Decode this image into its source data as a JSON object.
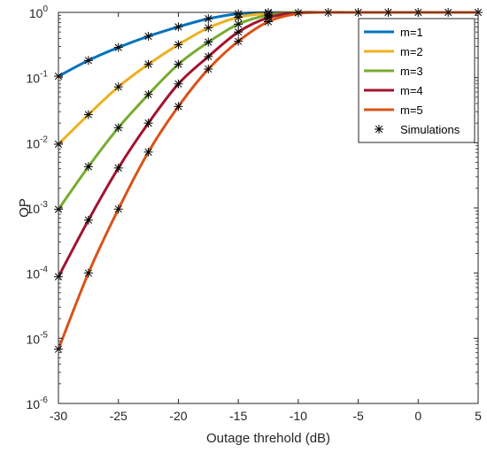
{
  "chart_data": {
    "type": "line",
    "xlabel": "Outage threhold (dB)",
    "ylabel": "OP",
    "xlim": [
      -30,
      5
    ],
    "ylim": [
      1e-06,
      1
    ],
    "yscale": "log",
    "grid": false,
    "legend_position": "top-right",
    "x_ticks": [
      {
        "value": -30,
        "label": "-30"
      },
      {
        "value": -25,
        "label": "-25"
      },
      {
        "value": -20,
        "label": "-20"
      },
      {
        "value": -15,
        "label": "-15"
      },
      {
        "value": -10,
        "label": "-10"
      },
      {
        "value": -5,
        "label": "-5"
      },
      {
        "value": 0,
        "label": "0"
      },
      {
        "value": 5,
        "label": "5"
      }
    ],
    "y_ticks": [
      {
        "value": 1,
        "base": "10",
        "exp": "0"
      },
      {
        "value": 0.1,
        "base": "10",
        "exp": "-1"
      },
      {
        "value": 0.01,
        "base": "10",
        "exp": "-2"
      },
      {
        "value": 0.001,
        "base": "10",
        "exp": "-3"
      },
      {
        "value": 0.0001,
        "base": "10",
        "exp": "-4"
      },
      {
        "value": 1e-05,
        "base": "10",
        "exp": "-5"
      },
      {
        "value": 1e-06,
        "base": "10",
        "exp": "-6"
      }
    ],
    "x": [
      -30,
      -27.5,
      -25,
      -22.5,
      -20,
      -17.5,
      -15,
      -12.5,
      -10,
      -7.5,
      -5,
      -2.5,
      0,
      2.5,
      5
    ],
    "series": [
      {
        "name": "m=1",
        "color": "#0072BD",
        "values": [
          0.105,
          0.183,
          0.29,
          0.43,
          0.6,
          0.8,
          0.95,
          0.995,
          1,
          1,
          1,
          1,
          1,
          1,
          1
        ]
      },
      {
        "name": "m=2",
        "color": "#EDB120",
        "values": [
          0.0095,
          0.027,
          0.072,
          0.16,
          0.32,
          0.58,
          0.84,
          0.97,
          1,
          1,
          1,
          1,
          1,
          1,
          1
        ]
      },
      {
        "name": "m=3",
        "color": "#77AC30",
        "values": [
          0.00095,
          0.0043,
          0.017,
          0.055,
          0.16,
          0.35,
          0.66,
          0.91,
          0.995,
          1,
          1,
          1,
          1,
          1,
          1
        ]
      },
      {
        "name": "m=4",
        "color": "#A2142F",
        "values": [
          8.8e-05,
          0.00065,
          0.0041,
          0.02,
          0.08,
          0.21,
          0.5,
          0.83,
          0.98,
          1,
          1,
          1,
          1,
          1,
          1
        ]
      },
      {
        "name": "m=5",
        "color": "#D95319",
        "values": [
          6.8e-06,
          0.0001,
          0.00096,
          0.0072,
          0.036,
          0.135,
          0.36,
          0.72,
          0.96,
          1,
          1,
          1,
          1,
          1,
          1
        ]
      }
    ],
    "simulations": {
      "name": "Simulations",
      "marker": "*",
      "color": "#000000",
      "points": [
        {
          "x": -30,
          "y": 0.105
        },
        {
          "x": -27.5,
          "y": 0.183
        },
        {
          "x": -25,
          "y": 0.29
        },
        {
          "x": -22.5,
          "y": 0.43
        },
        {
          "x": -20,
          "y": 0.6
        },
        {
          "x": -17.5,
          "y": 0.8
        },
        {
          "x": -15,
          "y": 0.95
        },
        {
          "x": -12.5,
          "y": 0.995
        },
        {
          "x": -30,
          "y": 0.0095
        },
        {
          "x": -27.5,
          "y": 0.027
        },
        {
          "x": -25,
          "y": 0.072
        },
        {
          "x": -22.5,
          "y": 0.16
        },
        {
          "x": -20,
          "y": 0.32
        },
        {
          "x": -17.5,
          "y": 0.58
        },
        {
          "x": -15,
          "y": 0.84
        },
        {
          "x": -12.5,
          "y": 0.97
        },
        {
          "x": -30,
          "y": 0.00095
        },
        {
          "x": -27.5,
          "y": 0.0043
        },
        {
          "x": -25,
          "y": 0.017
        },
        {
          "x": -22.5,
          "y": 0.055
        },
        {
          "x": -20,
          "y": 0.16
        },
        {
          "x": -17.5,
          "y": 0.35
        },
        {
          "x": -15,
          "y": 0.66
        },
        {
          "x": -12.5,
          "y": 0.91
        },
        {
          "x": -30,
          "y": 8.8e-05
        },
        {
          "x": -27.5,
          "y": 0.00065
        },
        {
          "x": -25,
          "y": 0.0041
        },
        {
          "x": -22.5,
          "y": 0.02
        },
        {
          "x": -20,
          "y": 0.08
        },
        {
          "x": -17.5,
          "y": 0.21
        },
        {
          "x": -15,
          "y": 0.5
        },
        {
          "x": -12.5,
          "y": 0.83
        },
        {
          "x": -30,
          "y": 6.8e-06
        },
        {
          "x": -27.5,
          "y": 0.0001
        },
        {
          "x": -25,
          "y": 0.00096
        },
        {
          "x": -22.5,
          "y": 0.0072
        },
        {
          "x": -20,
          "y": 0.036
        },
        {
          "x": -17.5,
          "y": 0.135
        },
        {
          "x": -15,
          "y": 0.36
        },
        {
          "x": -12.5,
          "y": 0.72
        },
        {
          "x": -10,
          "y": 0.985
        },
        {
          "x": -7.5,
          "y": 1
        },
        {
          "x": -5,
          "y": 1
        },
        {
          "x": -2.5,
          "y": 1
        },
        {
          "x": 0,
          "y": 1
        },
        {
          "x": 2.5,
          "y": 1
        },
        {
          "x": 5,
          "y": 1
        }
      ]
    }
  }
}
